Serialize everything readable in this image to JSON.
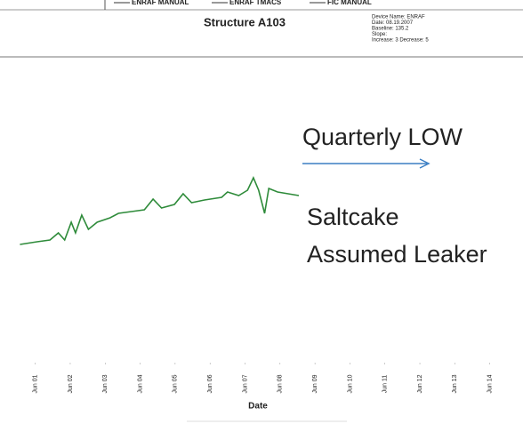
{
  "chart_data": {
    "type": "line",
    "title": "Structure A103",
    "legend": [
      "ENRAF MANUAL",
      "ENRAF TMACS",
      "FIC MANUAL"
    ],
    "info": [
      "Device Name: ENRAF",
      "Date: 08.19.2007",
      "Baseline: 135.2",
      "Slope:",
      "Increase: 3  Decrease: 5"
    ],
    "xlabel": "Date",
    "annotations": [
      "Quarterly LOW",
      "Saltcake",
      "Assumed Leaker"
    ],
    "arrow_color": "#3b7fc4",
    "xlim": [
      0.5,
      14.95
    ],
    "ylim": [
      0,
      100
    ],
    "xticks": [
      {
        "value": 1,
        "label": "Jun 01"
      },
      {
        "value": 2,
        "label": "Jun 02"
      },
      {
        "value": 3,
        "label": "Jun 03"
      },
      {
        "value": 4,
        "label": "Jun 04"
      },
      {
        "value": 5,
        "label": "Jun 05"
      },
      {
        "value": 6,
        "label": "Jun 06"
      },
      {
        "value": 7,
        "label": "Jun 07"
      },
      {
        "value": 8,
        "label": "Jun 08"
      },
      {
        "value": 9,
        "label": "Jun 09"
      },
      {
        "value": 10,
        "label": "Jun 10"
      },
      {
        "value": 11,
        "label": "Jun 11"
      },
      {
        "value": 12,
        "label": "Jun 12"
      },
      {
        "value": 13,
        "label": "Jun 13"
      },
      {
        "value": 14,
        "label": "Jun 14"
      }
    ],
    "series": [
      {
        "color": "#2e8b3a",
        "x": [
          0.56,
          1.05,
          1.42,
          1.66,
          1.84,
          2.03,
          2.15,
          2.33,
          2.52,
          2.77,
          3.14,
          3.38,
          3.75,
          4.12,
          4.37,
          4.61,
          4.98,
          5.23,
          5.47,
          5.84,
          6.33,
          6.5,
          6.82,
          7.07,
          7.24,
          7.39,
          7.56,
          7.68,
          7.93,
          8.54
        ],
        "values": [
          52.5,
          54,
          55,
          59,
          55,
          65,
          59,
          69,
          61,
          65,
          67.5,
          70,
          71,
          72,
          78,
          73,
          75,
          81,
          76,
          77.5,
          79,
          82,
          80,
          83,
          90,
          83,
          70,
          84,
          82,
          80
        ]
      }
    ]
  }
}
